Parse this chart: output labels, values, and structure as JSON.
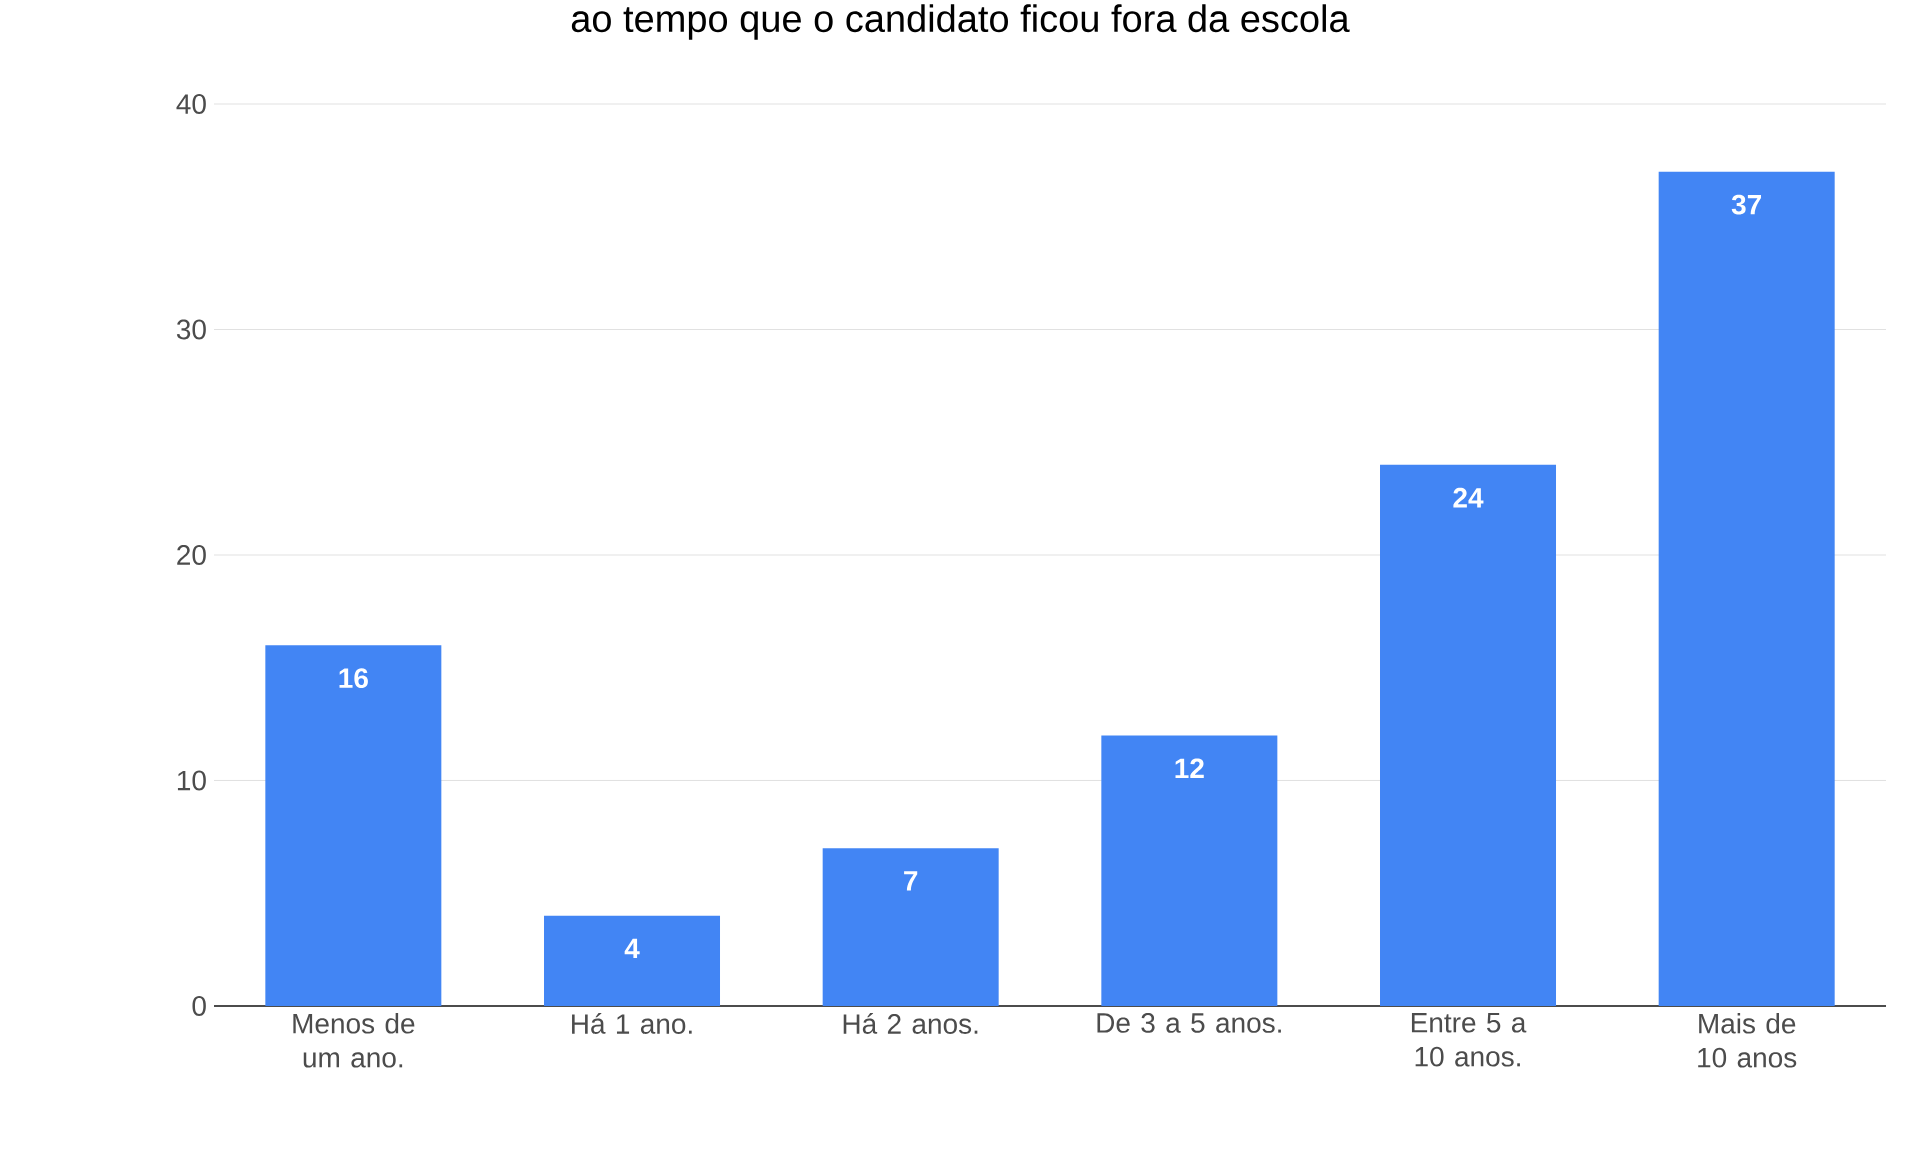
{
  "chart_data": {
    "type": "bar",
    "title": "ao tempo que o candidato ficou fora da escola",
    "categories": [
      "Menos de um ano.",
      "Há 1 ano.",
      "Há 2 anos.",
      "De 3 a 5 anos.",
      "Entre 5 a 10 anos.",
      "Mais de 10 anos"
    ],
    "values": [
      16,
      4,
      7,
      12,
      24,
      37
    ],
    "color": "#4285f4",
    "ylim": [
      0,
      40
    ],
    "yticks": [
      0,
      10,
      20,
      30,
      40
    ],
    "grid": "y",
    "data_labels": true
  }
}
